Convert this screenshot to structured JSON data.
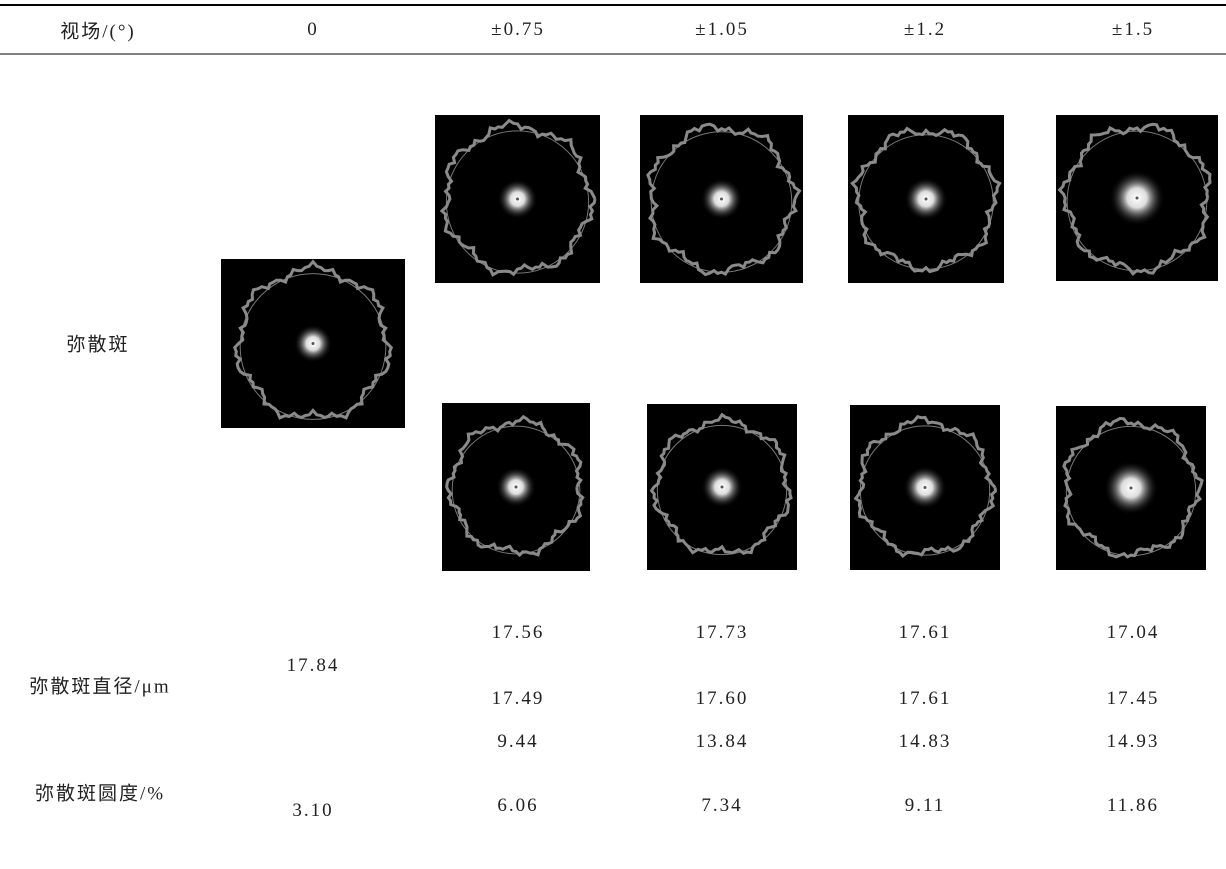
{
  "table": {
    "header": [
      "视场/(°)",
      "0",
      "±0.75",
      "±1.05",
      "±1.2",
      "±1.5"
    ],
    "spot_row": {
      "label": "弥散斑"
    },
    "rows": [
      {
        "label": "弥散斑直径/μm",
        "center": "17.84",
        "upper": [
          "17.56",
          "17.73",
          "17.61",
          "17.04"
        ],
        "lower": [
          "17.49",
          "17.60",
          "17.61",
          "17.45"
        ]
      },
      {
        "label": "弥散斑圆度/%",
        "center": "3.10",
        "upper": [
          "9.44",
          "13.84",
          "14.83",
          "14.93"
        ],
        "lower": [
          "6.06",
          "7.34",
          "9.11",
          "11.86"
        ]
      }
    ]
  }
}
